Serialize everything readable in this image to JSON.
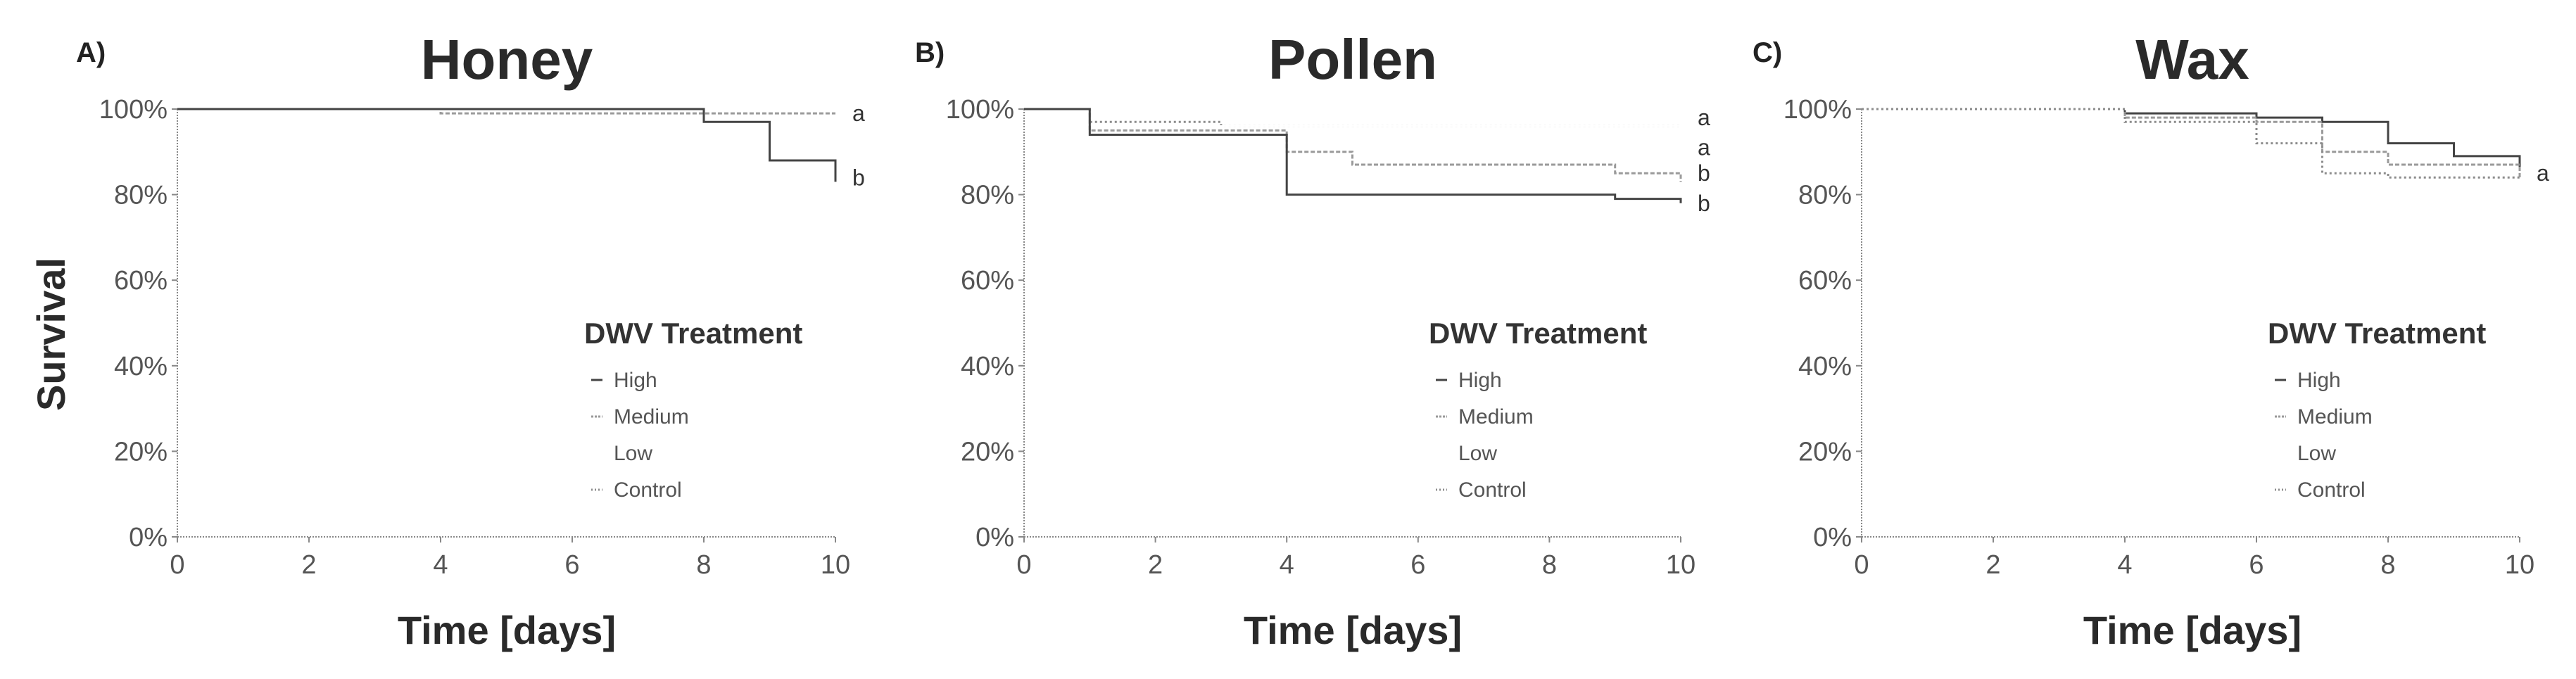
{
  "figure": {
    "ylabel": "Survival",
    "xlabel": "Time [days]",
    "legend_title": "DWV Treatment",
    "legend_items": [
      "High",
      "Medium",
      "Low",
      "Control"
    ]
  },
  "colors": {
    "High": "#444444",
    "Medium": "#9a9a9a",
    "Low": "#ffffff",
    "Control": "#8c8c8c",
    "axis": "#888888"
  },
  "chart_data": [
    {
      "type": "line",
      "panel": "A)",
      "title": "Honey",
      "xlabel": "Time [days]",
      "ylabel": "Survival",
      "xlim": [
        0,
        10
      ],
      "ylim": [
        0,
        100
      ],
      "xticks": [
        "0",
        "2",
        "4",
        "6",
        "8",
        "10"
      ],
      "yticks": [
        "0%",
        "20%",
        "40%",
        "60%",
        "80%",
        "100%"
      ],
      "legend": {
        "title": "DWV Treatment",
        "position": "right",
        "items": [
          "High",
          "Medium",
          "Low",
          "Control"
        ]
      },
      "series": [
        {
          "name": "Control",
          "x": [
            0,
            10
          ],
          "y": [
            100,
            100
          ]
        },
        {
          "name": "Low",
          "x": [
            0,
            10
          ],
          "y": [
            100,
            100
          ]
        },
        {
          "name": "Medium",
          "x": [
            0,
            4,
            10
          ],
          "y": [
            100,
            99,
            99
          ]
        },
        {
          "name": "High",
          "x": [
            0,
            8,
            9,
            10
          ],
          "y": [
            100,
            97,
            88,
            83
          ]
        }
      ],
      "significance": [
        {
          "label": "a",
          "y": 99
        },
        {
          "label": "b",
          "y": 84
        }
      ]
    },
    {
      "type": "line",
      "panel": "B)",
      "title": "Pollen",
      "xlabel": "Time [days]",
      "ylabel": "Survival",
      "xlim": [
        0,
        10
      ],
      "ylim": [
        0,
        100
      ],
      "xticks": [
        "0",
        "2",
        "4",
        "6",
        "8",
        "10"
      ],
      "yticks": [
        "0%",
        "20%",
        "40%",
        "60%",
        "80%",
        "100%"
      ],
      "legend": {
        "title": "DWV Treatment",
        "position": "right",
        "items": [
          "High",
          "Medium",
          "Low",
          "Control"
        ]
      },
      "series": [
        {
          "name": "Control",
          "x": [
            0,
            1,
            3,
            10
          ],
          "y": [
            100,
            97,
            96,
            96
          ]
        },
        {
          "name": "Low",
          "x": [
            0,
            1,
            10
          ],
          "y": [
            100,
            96,
            96
          ]
        },
        {
          "name": "Medium",
          "x": [
            0,
            1,
            4,
            5,
            9,
            10
          ],
          "y": [
            100,
            95,
            90,
            87,
            85,
            83
          ]
        },
        {
          "name": "High",
          "x": [
            0,
            1,
            3,
            4,
            9,
            10
          ],
          "y": [
            100,
            94,
            94,
            80,
            79,
            78
          ]
        }
      ],
      "significance": [
        {
          "label": "a",
          "y": 98
        },
        {
          "label": "a",
          "y": 91
        },
        {
          "label": "b",
          "y": 85
        },
        {
          "label": "b",
          "y": 78
        }
      ]
    },
    {
      "type": "line",
      "panel": "C)",
      "title": "Wax",
      "xlabel": "Time [days]",
      "ylabel": "Survival",
      "xlim": [
        0,
        10
      ],
      "ylim": [
        0,
        100
      ],
      "xticks": [
        "0",
        "2",
        "4",
        "6",
        "8",
        "10"
      ],
      "yticks": [
        "0%",
        "20%",
        "40%",
        "60%",
        "80%",
        "100%"
      ],
      "legend": {
        "title": "DWV Treatment",
        "position": "right",
        "items": [
          "High",
          "Medium",
          "Low",
          "Control"
        ]
      },
      "series": [
        {
          "name": "High",
          "x": [
            0,
            4,
            6,
            7,
            8,
            9,
            10
          ],
          "y": [
            100,
            99,
            98,
            97,
            92,
            89,
            86
          ]
        },
        {
          "name": "Medium",
          "x": [
            0,
            4,
            6,
            7,
            8,
            10
          ],
          "y": [
            100,
            98,
            97,
            90,
            87,
            84
          ]
        },
        {
          "name": "Low",
          "x": [
            0,
            10
          ],
          "y": [
            100,
            100
          ]
        },
        {
          "name": "Control",
          "x": [
            0,
            4,
            6,
            7,
            8,
            10
          ],
          "y": [
            100,
            97,
            92,
            85,
            84,
            84
          ]
        }
      ],
      "significance": [
        {
          "label": "a",
          "y": 85
        }
      ]
    }
  ]
}
